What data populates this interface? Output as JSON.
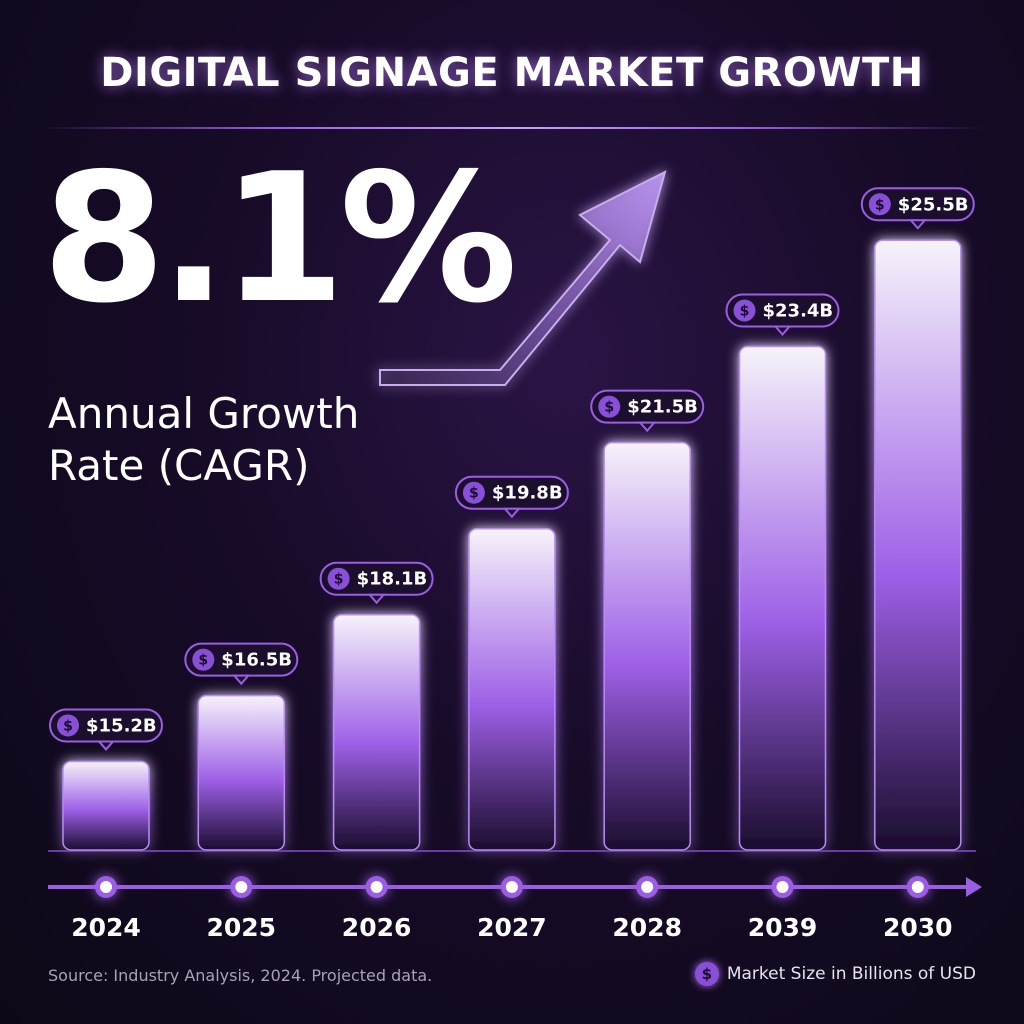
{
  "header": {
    "title": "DIGITAL SIGNAGE MARKET GROWTH"
  },
  "kpi": {
    "value": "8.1%",
    "label_line1": "Annual Growth",
    "label_line2": "Rate (CAGR)"
  },
  "colors": {
    "accent": "#9b5de5",
    "background": "#170b28",
    "bar_top": "#f6f3fa",
    "bar_mid": "#9d5fe6",
    "bar_bottom": "#1a0d2e"
  },
  "icons": {
    "value_badge": "dollar-coin-icon",
    "trend": "arrow-up-right-icon"
  },
  "chart_data": {
    "type": "bar",
    "title": "DIGITAL SIGNAGE MARKET GROWTH",
    "categories": [
      "2024",
      "2025",
      "2026",
      "2027",
      "2028",
      "2039",
      "2030"
    ],
    "values": [
      15.2,
      16.5,
      18.1,
      19.8,
      21.5,
      23.4,
      25.5
    ],
    "data_labels": [
      "$15.2B",
      "$16.5B",
      "$18.1B",
      "$19.8B",
      "$21.5B",
      "$23.4B",
      "$25.5B"
    ],
    "unit": "Billions of USD",
    "grid": false,
    "legend": "bottom-right"
  },
  "footer": {
    "source": "Source: Industry Analysis, 2024. Projected data.",
    "legend_label": "Market Size in Billions of USD",
    "legend_icon_glyph": "$"
  }
}
